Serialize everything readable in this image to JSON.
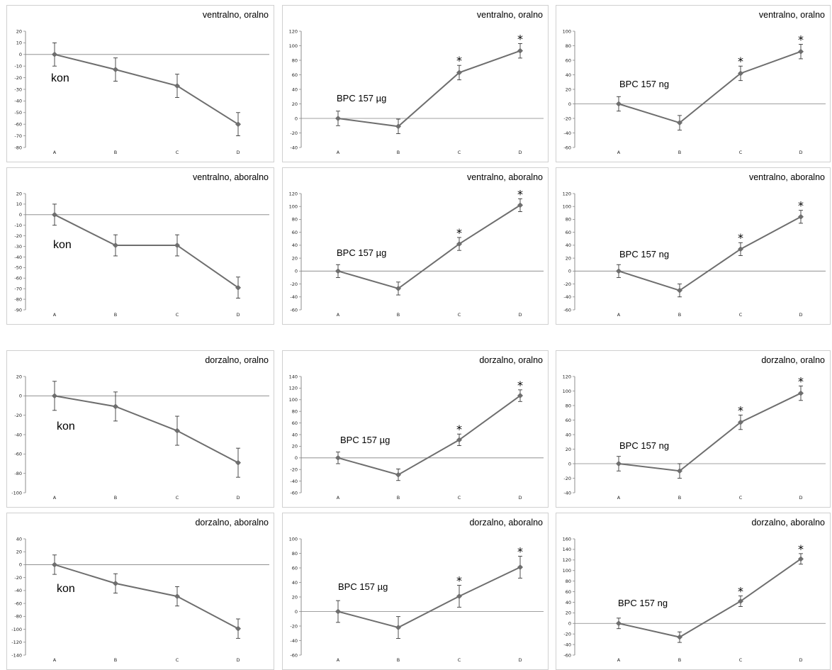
{
  "colors": {
    "line": "#6e6e6e",
    "axis": "#8c8c8c",
    "zero_line": "#808080",
    "error_bar": "#222222",
    "border": "#d0d0d0"
  },
  "figure": {
    "significance_marker": "*",
    "panels": [
      {
        "title": "ventralno, oralno",
        "label": "kon"
      },
      {
        "title": "ventralno, oralno",
        "label": "BPC 157 µg"
      },
      {
        "title": "ventralno, oralno",
        "label": "BPC 157 ng"
      },
      {
        "title": "ventralno, aboralno",
        "label": "kon"
      },
      {
        "title": "ventralno, aboralno",
        "label": "BPC 157 µg"
      },
      {
        "title": "ventralno, aboralno",
        "label": "BPC 157 ng"
      },
      {
        "title": "dorzalno, oralno",
        "label": "kon"
      },
      {
        "title": "dorzalno, oralno",
        "label": "BPC 157 µg"
      },
      {
        "title": "dorzalno, oralno",
        "label": "BPC 157 ng"
      },
      {
        "title": "dorzalno, aboralno",
        "label": "kon"
      },
      {
        "title": "dorzalno, aboralno",
        "label": "BPC 157 µg"
      },
      {
        "title": "dorzalno, aboralno",
        "label": "BPC 157 ng"
      }
    ]
  },
  "chart_data": [
    {
      "type": "line",
      "title": "ventralno, oralno",
      "annotation": "kon",
      "categories": [
        "A",
        "B",
        "C",
        "D"
      ],
      "values": [
        0,
        -13,
        -27,
        -60
      ],
      "error": [
        10,
        10,
        10,
        10
      ],
      "significant": [
        false,
        false,
        false,
        false
      ],
      "ylim": [
        -80,
        20
      ],
      "yticks": [
        20,
        10,
        0,
        -10,
        -20,
        -30,
        -40,
        -50,
        -60,
        -70,
        -80
      ]
    },
    {
      "type": "line",
      "title": "ventralno, oralno",
      "annotation": "BPC 157 µg",
      "categories": [
        "A",
        "B",
        "C",
        "D"
      ],
      "values": [
        0,
        -11,
        63,
        93
      ],
      "error": [
        10,
        10,
        10,
        10
      ],
      "significant": [
        false,
        false,
        true,
        true
      ],
      "ylim": [
        -40,
        120
      ],
      "yticks": [
        120,
        100,
        80,
        60,
        40,
        20,
        0,
        -20,
        -40
      ]
    },
    {
      "type": "line",
      "title": "ventralno, oralno",
      "annotation": "BPC 157 ng",
      "categories": [
        "A",
        "B",
        "C",
        "D"
      ],
      "values": [
        0,
        -26,
        42,
        72
      ],
      "error": [
        10,
        10,
        10,
        10
      ],
      "significant": [
        false,
        false,
        true,
        true
      ],
      "ylim": [
        -60,
        100
      ],
      "yticks": [
        100,
        80,
        60,
        40,
        20,
        0,
        -20,
        -40,
        -60
      ]
    },
    {
      "type": "line",
      "title": "ventralno, aboralno",
      "annotation": "kon",
      "categories": [
        "A",
        "B",
        "C",
        "D"
      ],
      "values": [
        0,
        -29,
        -29,
        -69
      ],
      "error": [
        10,
        10,
        10,
        10
      ],
      "significant": [
        false,
        false,
        false,
        false
      ],
      "ylim": [
        -90,
        20
      ],
      "yticks": [
        20,
        10,
        0,
        -10,
        -20,
        -30,
        -40,
        -50,
        -60,
        -70,
        -80,
        -90
      ]
    },
    {
      "type": "line",
      "title": "ventralno, aboralno",
      "annotation": "BPC 157 µg",
      "categories": [
        "A",
        "B",
        "C",
        "D"
      ],
      "values": [
        0,
        -27,
        42,
        102
      ],
      "error": [
        10,
        10,
        10,
        10
      ],
      "significant": [
        false,
        false,
        true,
        true
      ],
      "ylim": [
        -60,
        120
      ],
      "yticks": [
        120,
        100,
        80,
        60,
        40,
        20,
        0,
        -20,
        -40,
        -60
      ]
    },
    {
      "type": "line",
      "title": "ventralno, aboralno",
      "annotation": "BPC 157 ng",
      "categories": [
        "A",
        "B",
        "C",
        "D"
      ],
      "values": [
        0,
        -30,
        34,
        84
      ],
      "error": [
        10,
        10,
        10,
        10
      ],
      "significant": [
        false,
        false,
        true,
        true
      ],
      "ylim": [
        -60,
        120
      ],
      "yticks": [
        120,
        100,
        80,
        60,
        40,
        20,
        0,
        -20,
        -40,
        -60
      ]
    },
    {
      "type": "line",
      "title": "dorzalno, oralno",
      "annotation": "kon",
      "categories": [
        "A",
        "B",
        "C",
        "D"
      ],
      "values": [
        0,
        -11,
        -36,
        -69
      ],
      "error": [
        15,
        15,
        15,
        15
      ],
      "significant": [
        false,
        false,
        false,
        false
      ],
      "ylim": [
        -100,
        20
      ],
      "yticks": [
        20,
        0,
        -20,
        -40,
        -60,
        -80,
        -100
      ]
    },
    {
      "type": "line",
      "title": "dorzalno, oralno",
      "annotation": "BPC 157 µg",
      "categories": [
        "A",
        "B",
        "C",
        "D"
      ],
      "values": [
        0,
        -29,
        31,
        107
      ],
      "error": [
        10,
        10,
        10,
        10
      ],
      "significant": [
        false,
        false,
        true,
        true
      ],
      "ylim": [
        -60,
        140
      ],
      "yticks": [
        140,
        120,
        100,
        80,
        60,
        40,
        20,
        0,
        -20,
        -40,
        -60
      ]
    },
    {
      "type": "line",
      "title": "dorzalno, oralno",
      "annotation": "BPC 157 ng",
      "categories": [
        "A",
        "B",
        "C",
        "D"
      ],
      "values": [
        0,
        -10,
        57,
        97
      ],
      "error": [
        10,
        10,
        10,
        10
      ],
      "significant": [
        false,
        false,
        true,
        true
      ],
      "ylim": [
        -40,
        120
      ],
      "yticks": [
        120,
        100,
        80,
        60,
        40,
        20,
        0,
        -20,
        -40
      ]
    },
    {
      "type": "line",
      "title": "dorzalno, aboralno",
      "annotation": "kon",
      "categories": [
        "A",
        "B",
        "C",
        "D"
      ],
      "values": [
        0,
        -29,
        -49,
        -99
      ],
      "error": [
        15,
        15,
        15,
        15
      ],
      "significant": [
        false,
        false,
        false,
        false
      ],
      "ylim": [
        -140,
        40
      ],
      "yticks": [
        40,
        20,
        0,
        -20,
        -40,
        -60,
        -80,
        -100,
        -120,
        -140
      ]
    },
    {
      "type": "line",
      "title": "dorzalno, aboralno",
      "annotation": "BPC 157 µg",
      "categories": [
        "A",
        "B",
        "C",
        "D"
      ],
      "values": [
        0,
        -22,
        21,
        61
      ],
      "error": [
        15,
        15,
        15,
        15
      ],
      "significant": [
        false,
        false,
        true,
        true
      ],
      "ylim": [
        -60,
        100
      ],
      "yticks": [
        100,
        80,
        60,
        40,
        20,
        0,
        -20,
        -40,
        -60
      ]
    },
    {
      "type": "line",
      "title": "dorzalno, aboralno",
      "annotation": "BPC 157 ng",
      "categories": [
        "A",
        "B",
        "C",
        "D"
      ],
      "values": [
        0,
        -26,
        42,
        122
      ],
      "error": [
        10,
        10,
        10,
        10
      ],
      "significant": [
        false,
        false,
        true,
        true
      ],
      "ylim": [
        -60,
        160
      ],
      "yticks": [
        160,
        140,
        120,
        100,
        80,
        60,
        40,
        20,
        0,
        -20,
        -40,
        -60
      ]
    }
  ]
}
